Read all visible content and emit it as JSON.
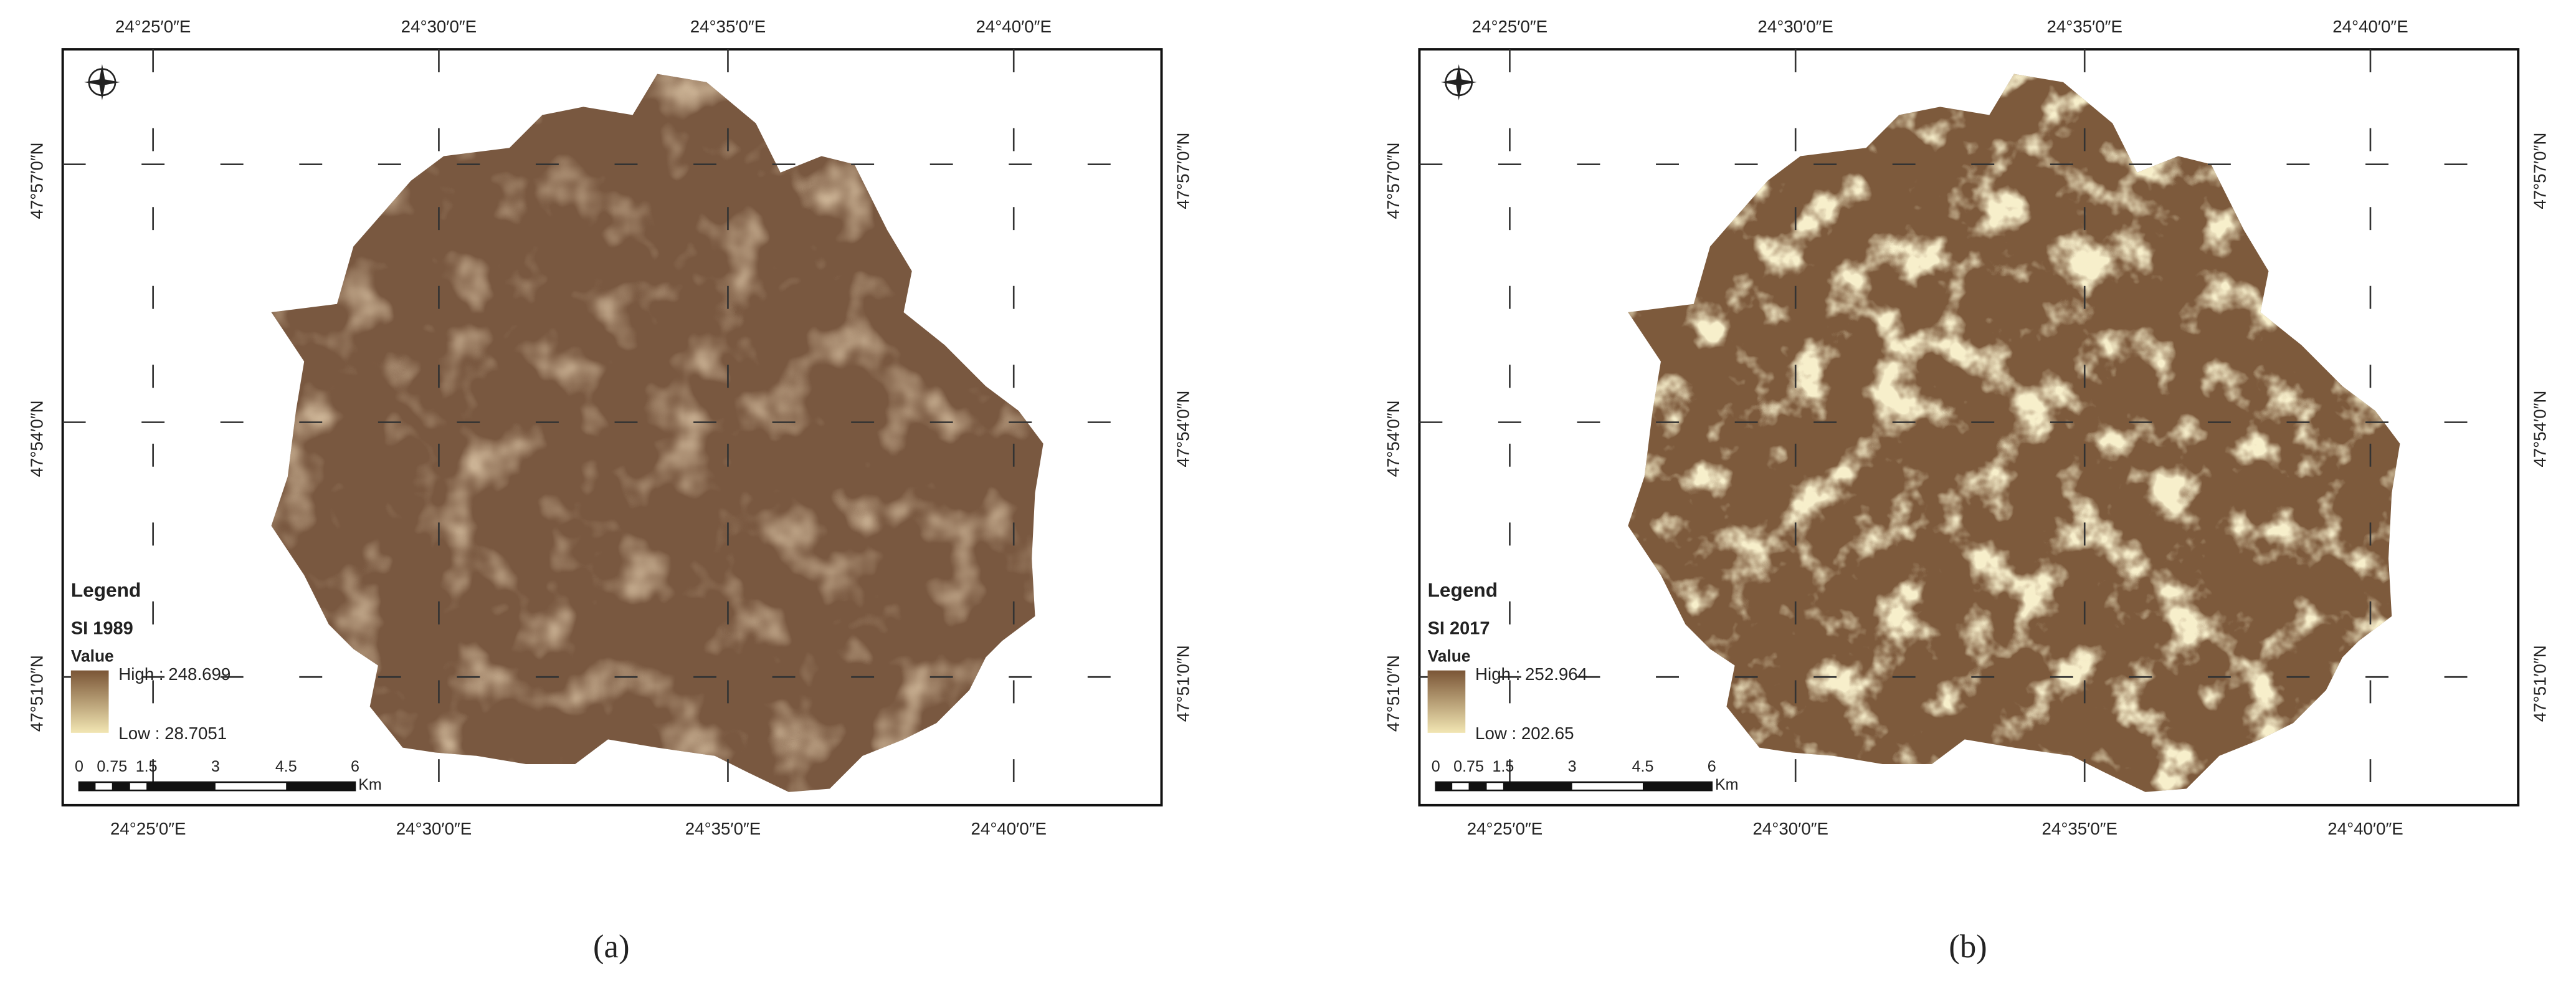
{
  "panels": [
    {
      "caption": "(a)",
      "top_labels": [
        "24°25′0″E",
        "24°30′0″E",
        "24°35′0″E",
        "24°40′0″E"
      ],
      "bottom_labels": [
        "24°25′0″E",
        "24°30′0″E",
        "24°35′0″E",
        "24°40′0″E"
      ],
      "left_labels": [
        "47°57′0″N",
        "47°54′0″N",
        "47°51′0″N"
      ],
      "right_labels": [
        "47°57′0″N",
        "47°54′0″N",
        "47°51′0″N"
      ],
      "legend": {
        "title": "Legend",
        "layer": "SI 1989",
        "field": "Value",
        "high": "High : 248.699",
        "low": "Low : 28.7051"
      },
      "scale_bar": {
        "ticks": [
          "0",
          "0.75",
          "1.5",
          "3",
          "4.5",
          "6"
        ],
        "unit": "Km"
      }
    },
    {
      "caption": "(b)",
      "top_labels": [
        "24°25′0″E",
        "24°30′0″E",
        "24°35′0″E",
        "24°40′0″E"
      ],
      "bottom_labels": [
        "24°25′0″E",
        "24°30′0″E",
        "24°35′0″E",
        "24°40′0″E"
      ],
      "left_labels": [
        "47°57′0″N",
        "47°54′0″N",
        "47°51′0″N"
      ],
      "right_labels": [
        "47°57′0″N",
        "47°54′0″N",
        "47°51′0″N"
      ],
      "legend": {
        "title": "Legend",
        "layer": "SI 2017",
        "field": "Value",
        "high": "High : 252.964",
        "low": "Low : 202.65"
      },
      "scale_bar": {
        "ticks": [
          "0",
          "0.75",
          "1.5",
          "3",
          "4.5",
          "6"
        ],
        "unit": "Km"
      }
    }
  ]
}
